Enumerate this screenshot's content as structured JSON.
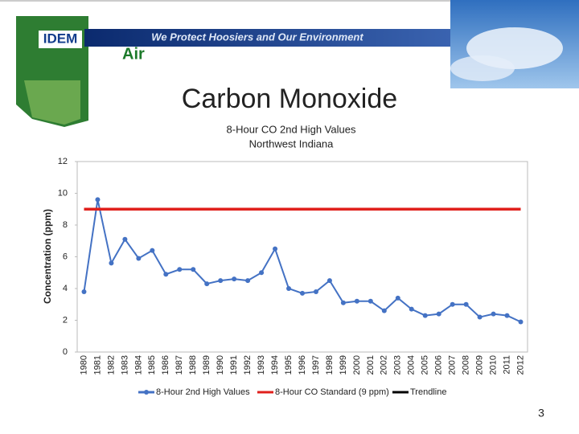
{
  "header": {
    "logo": "IDEM",
    "banner": "We Protect Hoosiers and Our Environment",
    "section": "Air"
  },
  "slide_title": "Carbon Monoxide",
  "slide_number": 3,
  "chart_data": {
    "type": "line",
    "title": "8-Hour CO 2nd High Values",
    "subtitle": "Northwest Indiana",
    "y_label": "Concentration (ppm)",
    "categories": [
      "1980",
      "1981",
      "1982",
      "1983",
      "1984",
      "1985",
      "1986",
      "1987",
      "1988",
      "1989",
      "1990",
      "1991",
      "1992",
      "1993",
      "1994",
      "1995",
      "1996",
      "1997",
      "1998",
      "1999",
      "2000",
      "2001",
      "2002",
      "2003",
      "2004",
      "2005",
      "2006",
      "2007",
      "2008",
      "2009",
      "2010",
      "2011",
      "2012"
    ],
    "series": [
      {
        "name": "8-Hour 2nd High Values",
        "color": "#4472c4",
        "markers": true,
        "values": [
          3.8,
          9.6,
          5.6,
          7.1,
          5.9,
          6.4,
          4.9,
          5.2,
          5.2,
          4.3,
          4.5,
          4.6,
          4.5,
          5.0,
          6.5,
          4.0,
          3.7,
          3.8,
          4.5,
          3.1,
          3.2,
          3.2,
          2.6,
          3.4,
          2.7,
          2.3,
          2.4,
          3.0,
          3.0,
          2.2,
          2.4,
          2.3,
          1.9
        ]
      },
      {
        "name": "8-Hour CO Standard (9 ppm)",
        "color": "#e0201c",
        "markers": false,
        "values": [
          9,
          9,
          9,
          9,
          9,
          9,
          9,
          9,
          9,
          9,
          9,
          9,
          9,
          9,
          9,
          9,
          9,
          9,
          9,
          9,
          9,
          9,
          9,
          9,
          9,
          9,
          9,
          9,
          9,
          9,
          9,
          9,
          9
        ]
      },
      {
        "name": "Trendline",
        "color": "#000000",
        "markers": false,
        "values": [
          null,
          null,
          null,
          null,
          null,
          null,
          null,
          null,
          null,
          null,
          null,
          null,
          null,
          null,
          null,
          null,
          null,
          null,
          null,
          null,
          null,
          null,
          null,
          null,
          null,
          null,
          null,
          null,
          null,
          null,
          null,
          null,
          null
        ]
      }
    ],
    "ylim": [
      0,
      12
    ],
    "yticks": [
      0,
      2,
      4,
      6,
      8,
      10,
      12
    ],
    "grid": false,
    "legend": "bottom"
  }
}
